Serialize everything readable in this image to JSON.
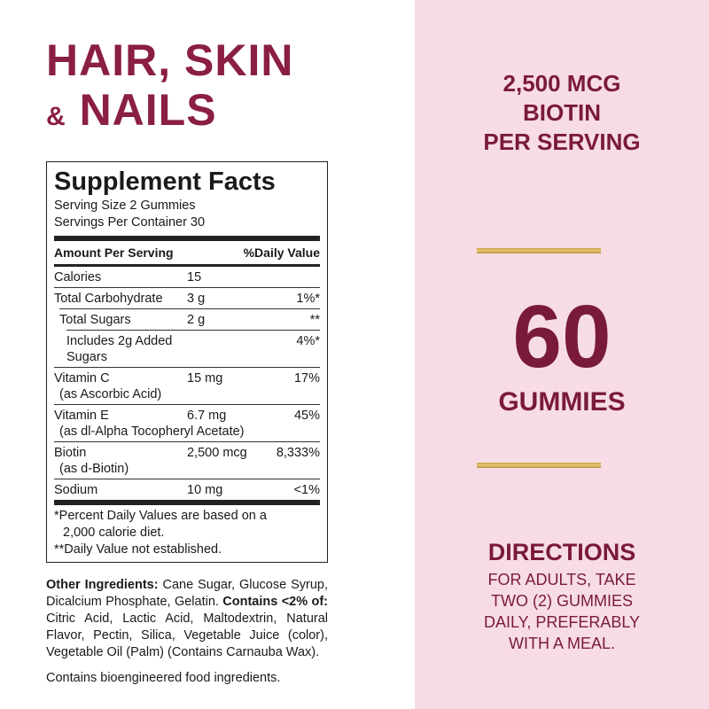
{
  "title": {
    "line1": "HAIR, SKIN",
    "amp": "&",
    "line2": "NAILS"
  },
  "facts": {
    "heading": "Supplement Facts",
    "serving_size": "Serving Size 2 Gummies",
    "servings_per_container": "Servings Per Container 30",
    "col_amount": "Amount Per Serving",
    "col_dv": "%Daily Value",
    "rows": [
      {
        "name": "Calories",
        "amount": "15",
        "dv": ""
      },
      {
        "name": "Total Carbohydrate",
        "amount": "3 g",
        "dv": "1%*"
      },
      {
        "name": "Total Sugars",
        "amount": "2 g",
        "dv": "**"
      },
      {
        "name": "Includes 2g Added Sugars",
        "amount": "",
        "dv": "4%*"
      },
      {
        "name": "Vitamin C",
        "sub": "(as Ascorbic Acid)",
        "amount": "15 mg",
        "dv": "17%"
      },
      {
        "name": "Vitamin E",
        "sub": "(as dl-Alpha Tocopheryl Acetate)",
        "amount": "6.7 mg",
        "dv": "45%"
      },
      {
        "name": "Biotin",
        "sub": "(as d-Biotin)",
        "amount": "2,500 mcg",
        "dv": "8,333%"
      },
      {
        "name": "Sodium",
        "amount": "10 mg",
        "dv": "<1%"
      }
    ],
    "footnote1": "*Percent Daily Values are based on a",
    "footnote1b": "2,000 calorie diet.",
    "footnote2": "**Daily Value not established."
  },
  "ingredients": {
    "label": "Other Ingredients:",
    "text1": " Cane Sugar, Glucose Syrup, Dicalcium Phosphate, Gelatin. ",
    "label2": "Contains <2% of:",
    "text2": " Citric Acid, Lactic Acid, Maltodextrin, Natural Flavor, Pectin, Silica, Vegetable Juice (color), Vegetable Oil (Palm) (Contains Carnauba Wax).",
    "bioengineered": "Contains bioengineered food ingredients."
  },
  "right": {
    "biotin": [
      "2,500 MCG",
      "BIOTIN",
      "PER SERVING"
    ],
    "count": "60",
    "count_unit": "GUMMIES",
    "directions_title": "DIRECTIONS",
    "directions": [
      "FOR ADULTS, TAKE",
      "TWO (2) GUMMIES",
      "DAILY, PREFERABLY",
      "WITH A MEAL."
    ]
  },
  "colors": {
    "brand": "#8a1f42",
    "panel": "#f7dce5",
    "gold": "#d4ae5a"
  }
}
